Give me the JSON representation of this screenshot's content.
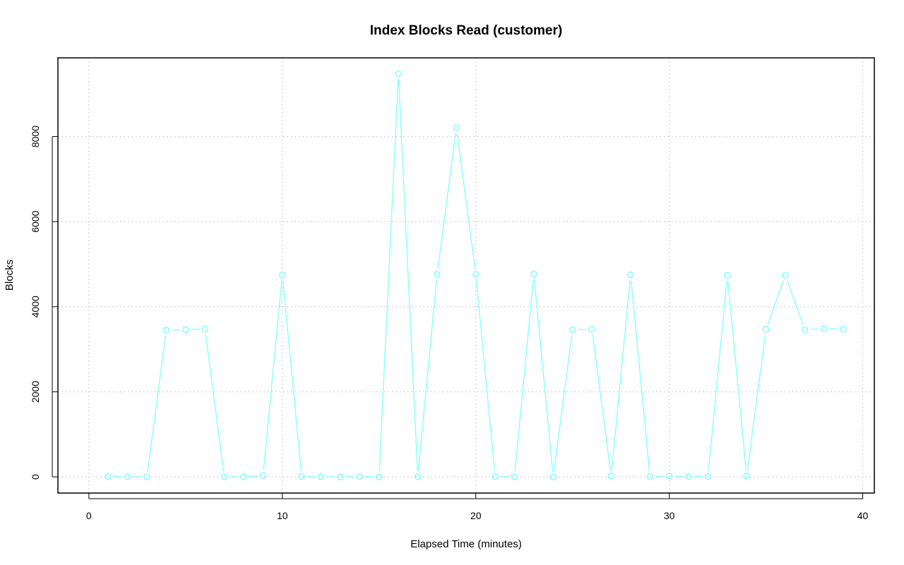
{
  "chart_data": {
    "type": "line",
    "title": "Index Blocks Read (customer)",
    "xlabel": "Elapsed Time (minutes)",
    "ylabel": "Blocks",
    "xlim": [
      -1.6,
      40.6
    ],
    "ylim": [
      -380,
      9850
    ],
    "x_ticks": [
      0,
      10,
      20,
      30,
      40
    ],
    "y_ticks": [
      0,
      2000,
      4000,
      6000,
      8000
    ],
    "grid": true,
    "color": "#7fffff",
    "series": [
      {
        "x": [
          1,
          2,
          3,
          4,
          5,
          6,
          7,
          8,
          9,
          10,
          11,
          12,
          13,
          14,
          15,
          16,
          17,
          18,
          19,
          20,
          21,
          22,
          23,
          24,
          25,
          26,
          27,
          28,
          29,
          30,
          31,
          32,
          33,
          34,
          35,
          36,
          37,
          38,
          39
        ],
        "values": [
          10,
          5,
          0,
          3450,
          3460,
          3480,
          0,
          0,
          30,
          4750,
          10,
          5,
          0,
          10,
          0,
          9480,
          10,
          4760,
          8210,
          4760,
          10,
          0,
          4770,
          0,
          3460,
          3470,
          20,
          4750,
          10,
          20,
          10,
          10,
          4740,
          20,
          3470,
          4740,
          3460,
          3490,
          3470
        ]
      }
    ]
  }
}
